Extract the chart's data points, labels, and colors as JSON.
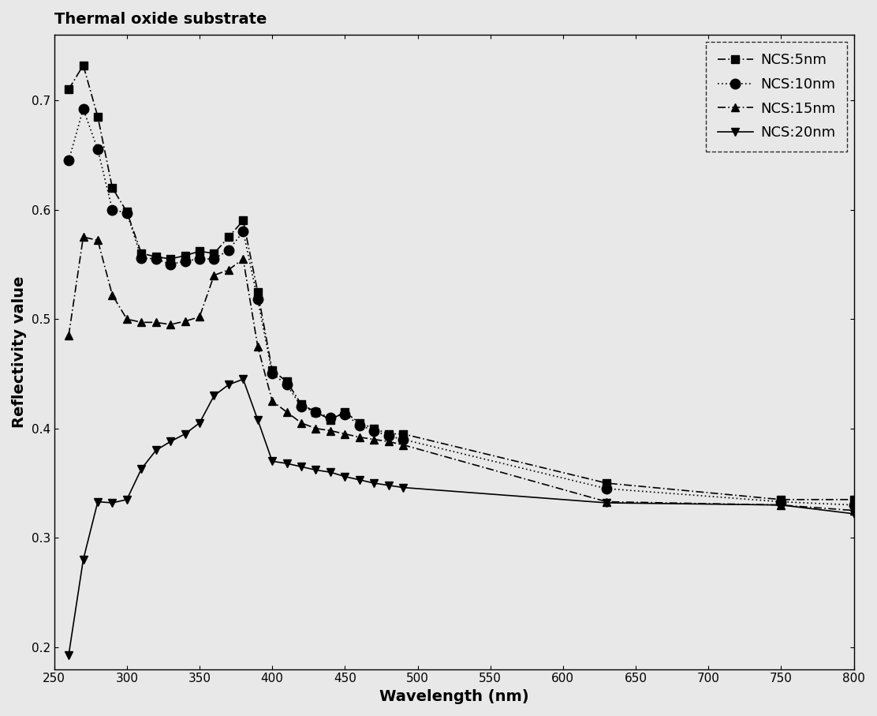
{
  "title": "Thermal oxide substrate",
  "xlabel": "Wavelength (nm)",
  "ylabel": "Reflectivity value",
  "xlim": [
    250,
    800
  ],
  "ylim": [
    0.18,
    0.76
  ],
  "xticks": [
    250,
    300,
    350,
    400,
    450,
    500,
    550,
    600,
    650,
    700,
    750,
    800
  ],
  "yticks": [
    0.2,
    0.3,
    0.4,
    0.5,
    0.6,
    0.7
  ],
  "background_color": "#e8e8e8",
  "series": [
    {
      "label": "NCS:5nm",
      "linestyle": "dashdot",
      "marker": "s",
      "color": "#000000",
      "x": [
        260,
        270,
        280,
        290,
        300,
        310,
        320,
        330,
        340,
        350,
        360,
        370,
        380,
        390,
        400,
        410,
        420,
        430,
        440,
        450,
        460,
        470,
        480,
        490,
        630,
        750,
        800
      ],
      "y": [
        0.71,
        0.732,
        0.685,
        0.62,
        0.598,
        0.56,
        0.557,
        0.555,
        0.558,
        0.562,
        0.56,
        0.575,
        0.59,
        0.525,
        0.453,
        0.443,
        0.422,
        0.415,
        0.408,
        0.415,
        0.405,
        0.4,
        0.395,
        0.395,
        0.35,
        0.335,
        0.335
      ]
    },
    {
      "label": "NCS:10nm",
      "linestyle": "dotted",
      "marker": "o",
      "color": "#000000",
      "x": [
        260,
        270,
        280,
        290,
        300,
        310,
        320,
        330,
        340,
        350,
        360,
        370,
        380,
        390,
        400,
        410,
        420,
        430,
        440,
        450,
        460,
        470,
        480,
        490,
        630,
        750,
        800
      ],
      "y": [
        0.645,
        0.692,
        0.655,
        0.6,
        0.597,
        0.556,
        0.555,
        0.55,
        0.553,
        0.555,
        0.555,
        0.563,
        0.58,
        0.518,
        0.45,
        0.44,
        0.42,
        0.415,
        0.41,
        0.413,
        0.403,
        0.398,
        0.393,
        0.39,
        0.345,
        0.333,
        0.33
      ]
    },
    {
      "label": "NCS:15nm",
      "linestyle": "dashdot",
      "marker": "^",
      "color": "#000000",
      "x": [
        260,
        270,
        280,
        290,
        300,
        310,
        320,
        330,
        340,
        350,
        360,
        370,
        380,
        390,
        400,
        410,
        420,
        430,
        440,
        450,
        460,
        470,
        480,
        490,
        630,
        750,
        800
      ],
      "y": [
        0.485,
        0.575,
        0.572,
        0.522,
        0.5,
        0.497,
        0.497,
        0.495,
        0.498,
        0.502,
        0.54,
        0.545,
        0.555,
        0.475,
        0.425,
        0.415,
        0.405,
        0.4,
        0.398,
        0.395,
        0.392,
        0.39,
        0.388,
        0.385,
        0.333,
        0.33,
        0.325
      ]
    },
    {
      "label": "NCS:20nm",
      "linestyle": "solid",
      "marker": "v",
      "color": "#000000",
      "x": [
        260,
        270,
        280,
        290,
        300,
        310,
        320,
        330,
        340,
        350,
        360,
        370,
        380,
        390,
        400,
        410,
        420,
        430,
        440,
        450,
        460,
        470,
        480,
        490,
        630,
        750,
        800
      ],
      "y": [
        0.193,
        0.28,
        0.333,
        0.332,
        0.335,
        0.363,
        0.38,
        0.388,
        0.395,
        0.405,
        0.43,
        0.44,
        0.445,
        0.408,
        0.37,
        0.368,
        0.365,
        0.362,
        0.36,
        0.356,
        0.353,
        0.35,
        0.348,
        0.346,
        0.332,
        0.33,
        0.322
      ]
    }
  ]
}
